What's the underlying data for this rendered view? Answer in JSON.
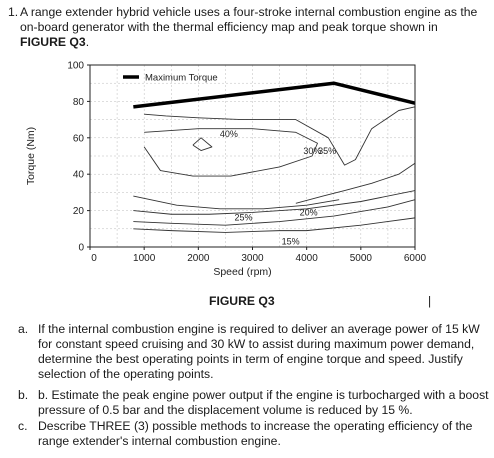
{
  "question": {
    "number": "1.",
    "intro": "A range extender hybrid vehicle uses a four-stroke internal combustion engine as the on-board generator with the thermal efficiency map and peak torque shown in",
    "figure_ref": "FIGURE Q3",
    "period": "."
  },
  "figure": {
    "caption": "FIGURE Q3",
    "cursor": "|"
  },
  "chart_data": {
    "type": "line",
    "xlabel": "Speed (rpm)",
    "ylabel": "Torque (Nm)",
    "xlim": [
      0,
      6000
    ],
    "ylim": [
      0,
      100
    ],
    "x_ticks": [
      "0",
      "1000",
      "2000",
      "3000",
      "4000",
      "5000",
      "6000"
    ],
    "y_ticks": [
      "0",
      "20",
      "40",
      "60",
      "80",
      "100"
    ],
    "grid": true,
    "legend": {
      "position": "top-left",
      "entries": [
        "Maximum Torque"
      ]
    },
    "series": [
      {
        "name": "Maximum Torque",
        "x": [
          800,
          4500,
          6000
        ],
        "y": [
          77,
          90,
          79
        ]
      }
    ],
    "efficiency_contours": [
      {
        "label": "40%",
        "x": [
          1900,
          2050,
          2250,
          2050,
          1900
        ],
        "y": [
          56,
          60,
          55,
          53,
          56
        ]
      },
      {
        "label": "35%",
        "x": [
          1000,
          2000,
          3000,
          3800,
          4200,
          4100,
          3500,
          2600,
          1900,
          1300,
          1000
        ],
        "y": [
          63,
          65,
          65,
          63,
          57,
          50,
          44,
          39,
          39,
          42,
          55
        ]
      },
      {
        "label": "30%",
        "x": [
          1000,
          1400,
          2000,
          2800,
          3800,
          4400,
          4700,
          4900,
          5200,
          5700,
          6000
        ],
        "y": [
          73,
          72,
          71,
          70,
          70,
          60,
          45,
          48,
          65,
          75,
          77
        ]
      },
      {
        "label": "25%",
        "x": [
          800,
          1500,
          2200,
          3000,
          4000,
          5000,
          6000
        ],
        "y": [
          20,
          18,
          18,
          19,
          21,
          25,
          31
        ]
      },
      {
        "label": "20%",
        "x": [
          800,
          1500,
          2500,
          3500,
          4500,
          5500,
          6000
        ],
        "y": [
          14,
          13,
          12,
          14,
          17,
          22,
          26
        ]
      },
      {
        "label": "15%",
        "x": [
          800,
          1500,
          2500,
          3500,
          4000,
          5000,
          6000
        ],
        "y": [
          10,
          9,
          8,
          9,
          9,
          12,
          16
        ]
      },
      {
        "label": "",
        "x": [
          3800,
          4300,
          4700,
          5200,
          5700,
          6000
        ],
        "y": [
          24,
          28,
          31,
          35,
          40,
          46
        ]
      },
      {
        "label": "",
        "x": [
          800,
          1600,
          2400,
          3200,
          4000,
          4600
        ],
        "y": [
          28,
          23,
          21,
          21,
          23,
          26
        ]
      }
    ]
  },
  "parts": [
    {
      "label": "a.",
      "text": "If the internal combustion engine is required to deliver an average power of 15 kW for constant speed cruising and 30 kW to assist during maximum power demand, determine the best operating points in term of engine torque and speed. Justify selection of the operating points."
    },
    {
      "label": "b.",
      "text": "b. Estimate the peak engine power output if the engine is turbocharged with a boost pressure of 0.5 bar and the displacement volume is reduced by 15 %."
    },
    {
      "label": "c.",
      "text": "Describe THREE (3) possible methods to increase the operating efficiency of the range extender's internal combustion engine."
    }
  ]
}
